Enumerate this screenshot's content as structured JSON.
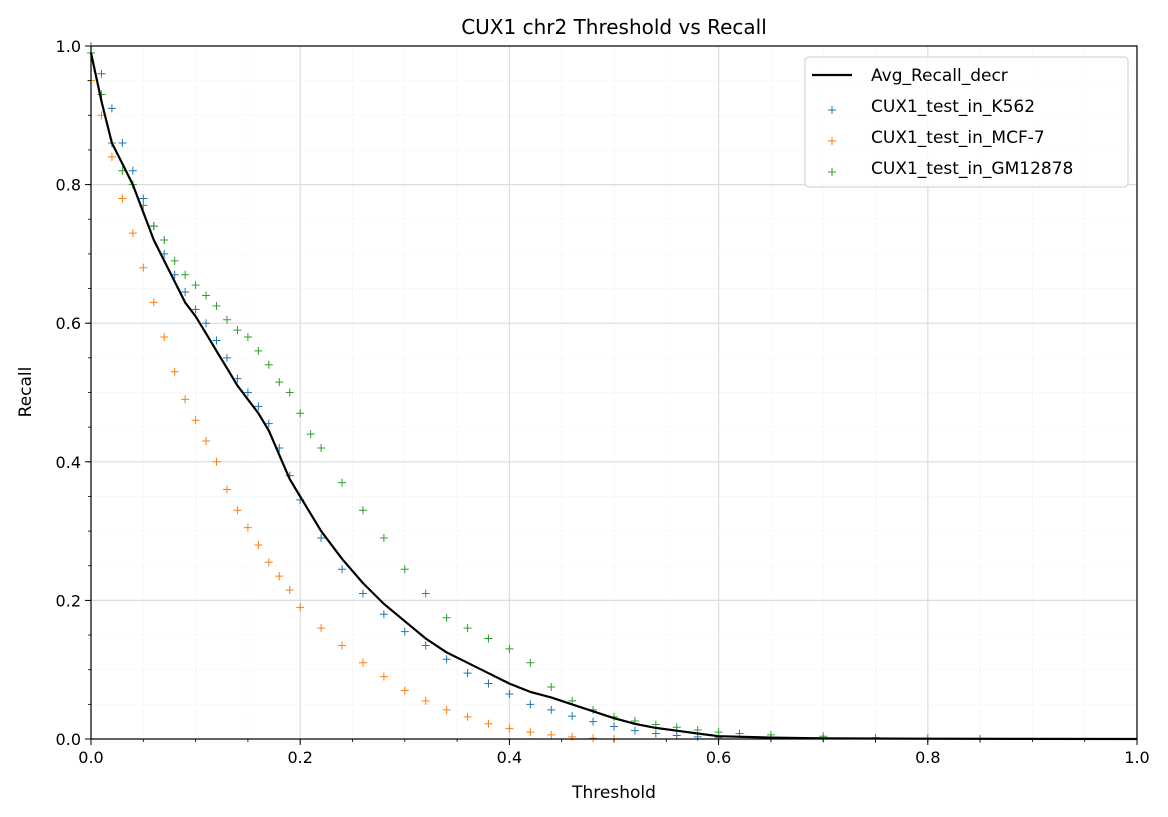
{
  "chart_data": {
    "type": "scatter",
    "title": "CUX1 chr2 Threshold vs Recall",
    "xlabel": "Threshold",
    "ylabel": "Recall",
    "xlim": [
      0.0,
      1.0
    ],
    "ylim": [
      0.0,
      1.0
    ],
    "xticks": [
      "0.0",
      "0.2",
      "0.4",
      "0.6",
      "0.8",
      "1.0"
    ],
    "yticks": [
      "0.0",
      "0.2",
      "0.4",
      "0.6",
      "0.8",
      "1.0"
    ],
    "grid": true,
    "legend_position": "top-right",
    "series": [
      {
        "name": "Avg_Recall_decr",
        "kind": "line",
        "color": "#000000",
        "x": [
          0.0,
          0.01,
          0.02,
          0.03,
          0.04,
          0.05,
          0.06,
          0.07,
          0.08,
          0.09,
          0.1,
          0.11,
          0.12,
          0.13,
          0.14,
          0.15,
          0.16,
          0.17,
          0.18,
          0.19,
          0.2,
          0.22,
          0.24,
          0.26,
          0.28,
          0.3,
          0.32,
          0.34,
          0.36,
          0.38,
          0.4,
          0.42,
          0.44,
          0.46,
          0.48,
          0.5,
          0.52,
          0.54,
          0.56,
          0.58,
          0.6,
          0.65,
          0.7,
          0.8,
          0.9,
          1.0
        ],
        "y": [
          0.99,
          0.92,
          0.86,
          0.83,
          0.8,
          0.76,
          0.72,
          0.69,
          0.66,
          0.63,
          0.61,
          0.585,
          0.56,
          0.535,
          0.51,
          0.49,
          0.47,
          0.445,
          0.41,
          0.375,
          0.35,
          0.3,
          0.26,
          0.225,
          0.195,
          0.17,
          0.145,
          0.125,
          0.11,
          0.095,
          0.08,
          0.068,
          0.06,
          0.05,
          0.04,
          0.03,
          0.022,
          0.016,
          0.012,
          0.008,
          0.004,
          0.002,
          0.001,
          0.0005,
          0.0002,
          0.0
        ]
      },
      {
        "name": "CUX1_test_in_K562",
        "kind": "scatter",
        "marker": "+",
        "color": "#1f77b4",
        "x": [
          0.0,
          0.01,
          0.02,
          0.03,
          0.04,
          0.05,
          0.06,
          0.07,
          0.08,
          0.09,
          0.1,
          0.11,
          0.12,
          0.13,
          0.14,
          0.15,
          0.16,
          0.17,
          0.18,
          0.19,
          0.2,
          0.22,
          0.24,
          0.26,
          0.28,
          0.3,
          0.32,
          0.34,
          0.36,
          0.38,
          0.4,
          0.42,
          0.44,
          0.46,
          0.48,
          0.5,
          0.52,
          0.54,
          0.56,
          0.58,
          0.6,
          0.65,
          0.7,
          0.75
        ],
        "y": [
          1.0,
          0.96,
          0.91,
          0.86,
          0.82,
          0.78,
          0.74,
          0.7,
          0.67,
          0.645,
          0.62,
          0.6,
          0.575,
          0.55,
          0.52,
          0.5,
          0.48,
          0.455,
          0.42,
          0.38,
          0.345,
          0.29,
          0.245,
          0.21,
          0.18,
          0.155,
          0.135,
          0.115,
          0.095,
          0.08,
          0.065,
          0.05,
          0.042,
          0.033,
          0.025,
          0.018,
          0.012,
          0.008,
          0.005,
          0.003,
          0.002,
          0.001,
          0.0005,
          0.0
        ]
      },
      {
        "name": "CUX1_test_in_MCF-7",
        "kind": "scatter",
        "marker": "+",
        "color": "#ff7f0e",
        "x": [
          0.0,
          0.01,
          0.02,
          0.03,
          0.04,
          0.05,
          0.06,
          0.07,
          0.08,
          0.09,
          0.1,
          0.11,
          0.12,
          0.13,
          0.14,
          0.15,
          0.16,
          0.17,
          0.18,
          0.19,
          0.2,
          0.22,
          0.24,
          0.26,
          0.28,
          0.3,
          0.32,
          0.34,
          0.36,
          0.38,
          0.4,
          0.42,
          0.44,
          0.46,
          0.48,
          0.5
        ],
        "y": [
          0.95,
          0.9,
          0.84,
          0.78,
          0.73,
          0.68,
          0.63,
          0.58,
          0.53,
          0.49,
          0.46,
          0.43,
          0.4,
          0.36,
          0.33,
          0.305,
          0.28,
          0.255,
          0.235,
          0.215,
          0.19,
          0.16,
          0.135,
          0.11,
          0.09,
          0.07,
          0.055,
          0.042,
          0.032,
          0.022,
          0.015,
          0.01,
          0.006,
          0.003,
          0.001,
          0.0
        ]
      },
      {
        "name": "CUX1_test_in_GM12878",
        "kind": "scatter",
        "marker": "+",
        "color": "#2ca02c",
        "x": [
          0.0,
          0.01,
          0.02,
          0.03,
          0.04,
          0.05,
          0.06,
          0.07,
          0.08,
          0.09,
          0.1,
          0.11,
          0.12,
          0.13,
          0.14,
          0.15,
          0.16,
          0.17,
          0.18,
          0.19,
          0.2,
          0.21,
          0.22,
          0.24,
          0.26,
          0.28,
          0.3,
          0.32,
          0.34,
          0.36,
          0.38,
          0.4,
          0.42,
          0.44,
          0.46,
          0.48,
          0.5,
          0.52,
          0.54,
          0.56,
          0.58,
          0.6,
          0.62,
          0.65,
          0.7,
          0.75,
          0.8,
          0.85
        ],
        "y": [
          0.99,
          0.93,
          0.86,
          0.82,
          0.8,
          0.77,
          0.74,
          0.72,
          0.69,
          0.67,
          0.655,
          0.64,
          0.625,
          0.605,
          0.59,
          0.58,
          0.56,
          0.54,
          0.515,
          0.5,
          0.47,
          0.44,
          0.42,
          0.37,
          0.33,
          0.29,
          0.245,
          0.21,
          0.175,
          0.16,
          0.145,
          0.13,
          0.11,
          0.075,
          0.055,
          0.042,
          0.032,
          0.026,
          0.021,
          0.017,
          0.013,
          0.01,
          0.008,
          0.006,
          0.004,
          0.002,
          0.001,
          0.0
        ]
      }
    ]
  }
}
